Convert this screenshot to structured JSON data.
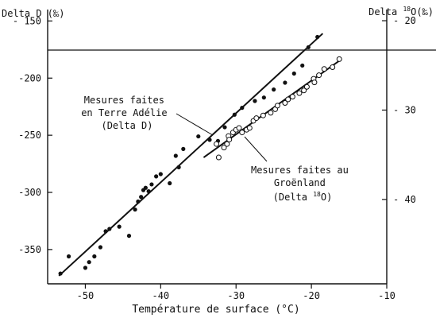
{
  "chart_data": {
    "type": "scatter",
    "left_axis_title": "Delta D (‰)",
    "right_axis_title_prefix": "Delta ",
    "right_axis_title_sup": "18",
    "right_axis_title_suffix": "O(‰)",
    "xlabel": "Température de surface (°C)",
    "xlim": [
      -55,
      -10
    ],
    "ylim_left": [
      -380,
      -140
    ],
    "ylim_right": [
      -49.44,
      -18.75
    ],
    "x_ticks": [
      -50,
      -40,
      -30,
      -20,
      -10
    ],
    "x_tick_labels": [
      "-50",
      "-40",
      "-30",
      "-20",
      "-10"
    ],
    "y_left_ticks": [
      -150,
      -200,
      -250,
      -300,
      -350
    ],
    "y_left_tick_labels": [
      "- 150",
      "-200",
      "-250",
      "-300",
      "-350"
    ],
    "y_right_ticks": [
      -20,
      -30,
      -40
    ],
    "y_right_tick_labels": [
      "- 20",
      "- 30",
      "- 40"
    ],
    "grid": false,
    "annotation_antarctic": [
      "Mesures faites",
      "en Terre Adélie",
      "(Delta D)"
    ],
    "annotation_greenland_lines": [
      "Mesures faites au",
      "Groënland"
    ],
    "annotation_greenland_last_prefix": "(Delta ",
    "annotation_greenland_last_sup": "18",
    "annotation_greenland_last_suffix": "O)",
    "series": [
      {
        "axis": "left",
        "marker": "filled",
        "points": [
          [
            -53.3,
            -371
          ],
          [
            -52.2,
            -356
          ],
          [
            -50,
            -366
          ],
          [
            -49.5,
            -361
          ],
          [
            -48.8,
            -356
          ],
          [
            -48,
            -348
          ],
          [
            -47.3,
            -334
          ],
          [
            -46.8,
            -332
          ],
          [
            -45.5,
            -330
          ],
          [
            -44.2,
            -338
          ],
          [
            -43.4,
            -315
          ],
          [
            -43,
            -308
          ],
          [
            -42.6,
            -304
          ],
          [
            -42.3,
            -298
          ],
          [
            -42,
            -296
          ],
          [
            -41.6,
            -299
          ],
          [
            -41.2,
            -293
          ],
          [
            -40.6,
            -286
          ],
          [
            -40,
            -284
          ],
          [
            -38.8,
            -292
          ],
          [
            -38,
            -268
          ],
          [
            -37.6,
            -278
          ],
          [
            -37,
            -262
          ],
          [
            -35,
            -251
          ],
          [
            -33.5,
            -254
          ],
          [
            -32.4,
            -255
          ],
          [
            -31.5,
            -243
          ],
          [
            -30.2,
            -232
          ],
          [
            -29.2,
            -226
          ],
          [
            -27.5,
            -220
          ],
          [
            -26.3,
            -217
          ],
          [
            -25,
            -210
          ],
          [
            -23.5,
            -204
          ],
          [
            -22.3,
            -196
          ],
          [
            -21.2,
            -189
          ],
          [
            -20.4,
            -173
          ],
          [
            -19.2,
            -164
          ]
        ],
        "fit": [
          [
            -53.5,
            -373
          ],
          [
            -18.5,
            -161
          ]
        ]
      },
      {
        "axis": "right",
        "marker": "open",
        "points": [
          [
            -32.6,
            -33.8
          ],
          [
            -32.3,
            -35.3
          ],
          [
            -31.6,
            -34.2
          ],
          [
            -31.2,
            -33.8
          ],
          [
            -31,
            -32.9
          ],
          [
            -30.9,
            -33.3
          ],
          [
            -30.4,
            -32.5
          ],
          [
            -30,
            -32.2
          ],
          [
            -29.6,
            -32.0
          ],
          [
            -29.2,
            -32.5
          ],
          [
            -28.6,
            -32.2
          ],
          [
            -28.2,
            -32.0
          ],
          [
            -27.7,
            -31.2
          ],
          [
            -27.3,
            -30.9
          ],
          [
            -26.4,
            -30.6
          ],
          [
            -25.4,
            -30.3
          ],
          [
            -24.8,
            -29.9
          ],
          [
            -24.5,
            -29.5
          ],
          [
            -23.5,
            -29.2
          ],
          [
            -23.1,
            -28.8
          ],
          [
            -22.5,
            -28.5
          ],
          [
            -21.6,
            -28.1
          ],
          [
            -21.0,
            -27.8
          ],
          [
            -20.6,
            -27.4
          ],
          [
            -19.7,
            -26.5
          ],
          [
            -19.6,
            -26.9
          ],
          [
            -19.0,
            -26.1
          ],
          [
            -18.3,
            -25.4
          ],
          [
            -17.2,
            -25.2
          ],
          [
            -16.3,
            -24.3
          ]
        ],
        "fit": [
          [
            -34.3,
            -35.3
          ],
          [
            -16,
            -24.3
          ]
        ]
      }
    ]
  }
}
